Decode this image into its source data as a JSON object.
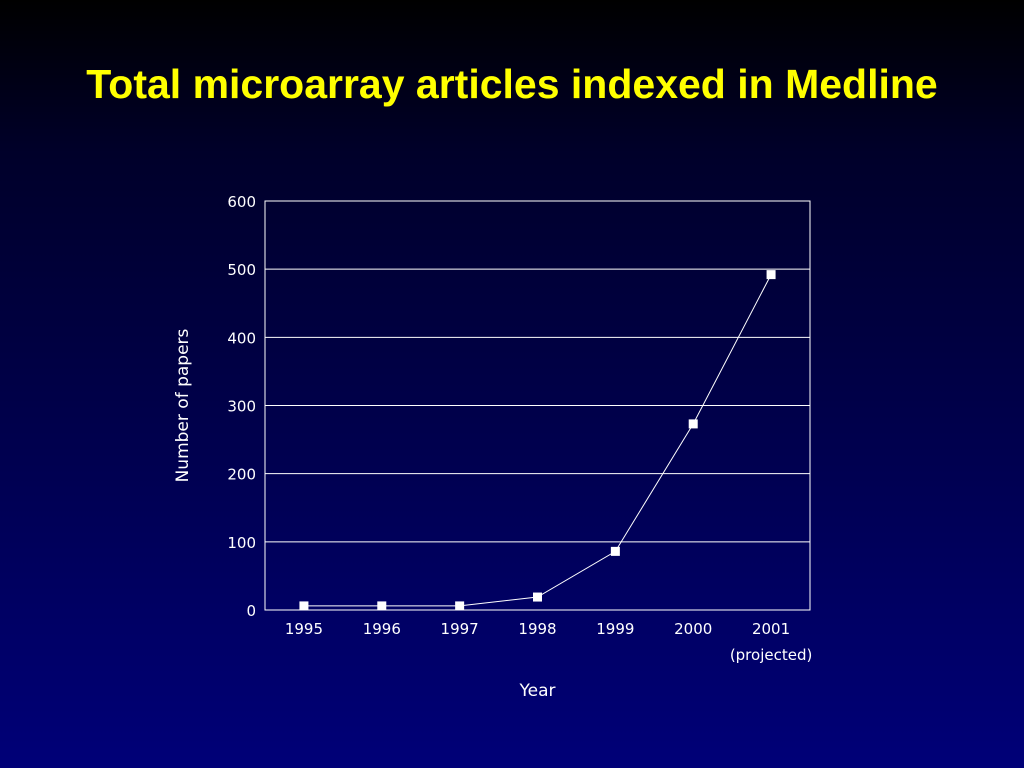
{
  "slide": {
    "title": "Total microarray articles indexed in Medline"
  },
  "chart_data": {
    "type": "line",
    "categories": [
      "1995",
      "1996",
      "1997",
      "1998",
      "1999",
      "2000",
      "2001"
    ],
    "category_notes": [
      "",
      "",
      "",
      "",
      "",
      "",
      "(projected)"
    ],
    "series": [
      {
        "values": [
          6,
          6,
          6,
          19,
          86,
          273,
          492
        ]
      }
    ],
    "xlabel": "Year",
    "ylabel": "Number of papers",
    "ylim": [
      0,
      600
    ],
    "yticks": [
      0,
      100,
      200,
      300,
      400,
      500,
      600
    ],
    "grid": true,
    "marker": "square",
    "colors": {
      "title": "#ffff00",
      "line": "#ffffff",
      "grid": "#ffffff",
      "text": "#ffffff"
    }
  }
}
